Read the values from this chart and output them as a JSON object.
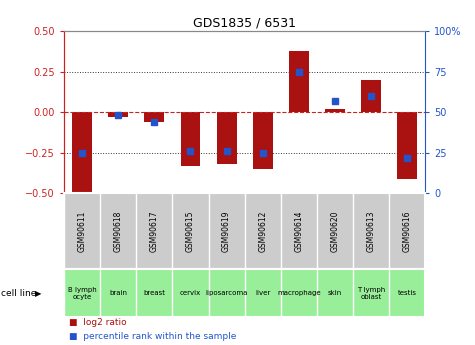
{
  "title": "GDS1835 / 6531",
  "samples": [
    "GSM90611",
    "GSM90618",
    "GSM90617",
    "GSM90615",
    "GSM90619",
    "GSM90612",
    "GSM90614",
    "GSM90620",
    "GSM90613",
    "GSM90616"
  ],
  "cell_lines": [
    "B lymph\nocyte",
    "brain",
    "breast",
    "cervix",
    "liposarcoma",
    "liver",
    "macrophage",
    "skin",
    "T lymph\noblast",
    "testis"
  ],
  "cell_line_display": [
    "B lymph\nocyte",
    "brain",
    "breast",
    "cervix",
    "liposarcoma",
    "liver",
    "macrophage",
    "skin",
    "T lymph\noblast",
    "testis"
  ],
  "log2_ratio": [
    -0.49,
    -0.03,
    -0.06,
    -0.33,
    -0.32,
    -0.35,
    0.38,
    0.02,
    0.2,
    -0.41
  ],
  "percentile_rank": [
    25,
    48,
    44,
    26,
    26,
    25,
    75,
    57,
    60,
    22
  ],
  "ylim_left": [
    -0.5,
    0.5
  ],
  "ylim_right": [
    0,
    100
  ],
  "yticks_left": [
    -0.5,
    -0.25,
    0,
    0.25,
    0.5
  ],
  "yticks_right": [
    0,
    25,
    50,
    75,
    100
  ],
  "bar_color": "#aa1111",
  "dot_color": "#2255cc",
  "hline_color": "#cc2222",
  "dotted_color": "#333333",
  "bg_color": "#ffffff",
  "plot_bg": "#ffffff",
  "gsm_bg": "#cccccc",
  "cell_bg": "#99ee99",
  "cell_bg_first": "#bbffbb",
  "legend_red": "log2 ratio",
  "legend_blue": "percentile rank within the sample",
  "cell_line_label": "cell line"
}
